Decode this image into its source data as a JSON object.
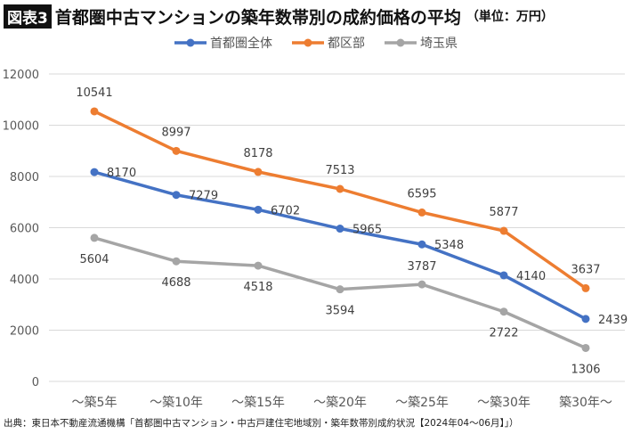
{
  "header": {
    "badge": "図表3",
    "title": "首都圏中古マンションの築年数帯別の成約価格の平均",
    "unit": "（単位：万円）"
  },
  "source": "出典：東日本不動産流通機構「首都圏中古マンション・中古戸建住宅地域別・築年数帯別成約状況【2024年04～06月】」）",
  "chart_data": {
    "type": "line",
    "title": "首都圏中古マンションの築年数帯別の成約価格の平均",
    "ylabel": "",
    "xlabel": "",
    "ylim": [
      0,
      12000
    ],
    "yticks": [
      0,
      2000,
      4000,
      6000,
      8000,
      10000,
      12000
    ],
    "grid": true,
    "legend": "top",
    "categories": [
      "～築5年",
      "～築10年",
      "～築15年",
      "～築20年",
      "～築25年",
      "～築30年",
      "築30年～"
    ],
    "series": [
      {
        "name": "首都圏全体",
        "color": "#4472C4",
        "values": [
          8170,
          7279,
          6702,
          5965,
          5348,
          4140,
          2439
        ]
      },
      {
        "name": "都区部",
        "color": "#ED7D31",
        "values": [
          10541,
          8997,
          8178,
          7513,
          6595,
          5877,
          3637
        ]
      },
      {
        "name": "埼玉県",
        "color": "#A5A5A5",
        "values": [
          5604,
          4688,
          4518,
          3594,
          3787,
          2722,
          1306
        ]
      }
    ]
  }
}
